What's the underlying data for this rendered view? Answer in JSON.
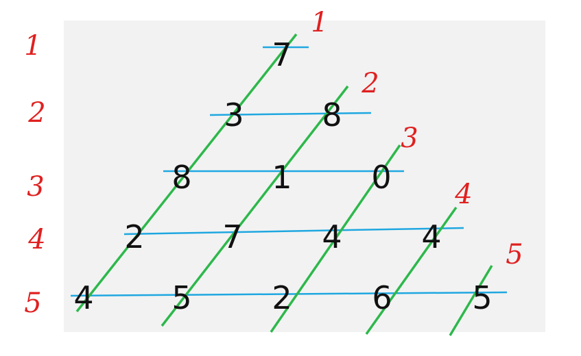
{
  "triangle_rows": [
    [
      "7"
    ],
    [
      "3",
      "8"
    ],
    [
      "8",
      "1",
      "0"
    ],
    [
      "2",
      "7",
      "4",
      "4"
    ],
    [
      "4",
      "5",
      "2",
      "6",
      "5"
    ]
  ],
  "row_labels": [
    "1",
    "2",
    "3",
    "4",
    "5"
  ],
  "diagonal_labels": [
    "1",
    "2",
    "3",
    "4",
    "5"
  ],
  "colors": {
    "row_line": "#1ea7e0",
    "diagonal_line": "#2db84b",
    "label": "#e02020",
    "panel": "#f2f2f2"
  }
}
